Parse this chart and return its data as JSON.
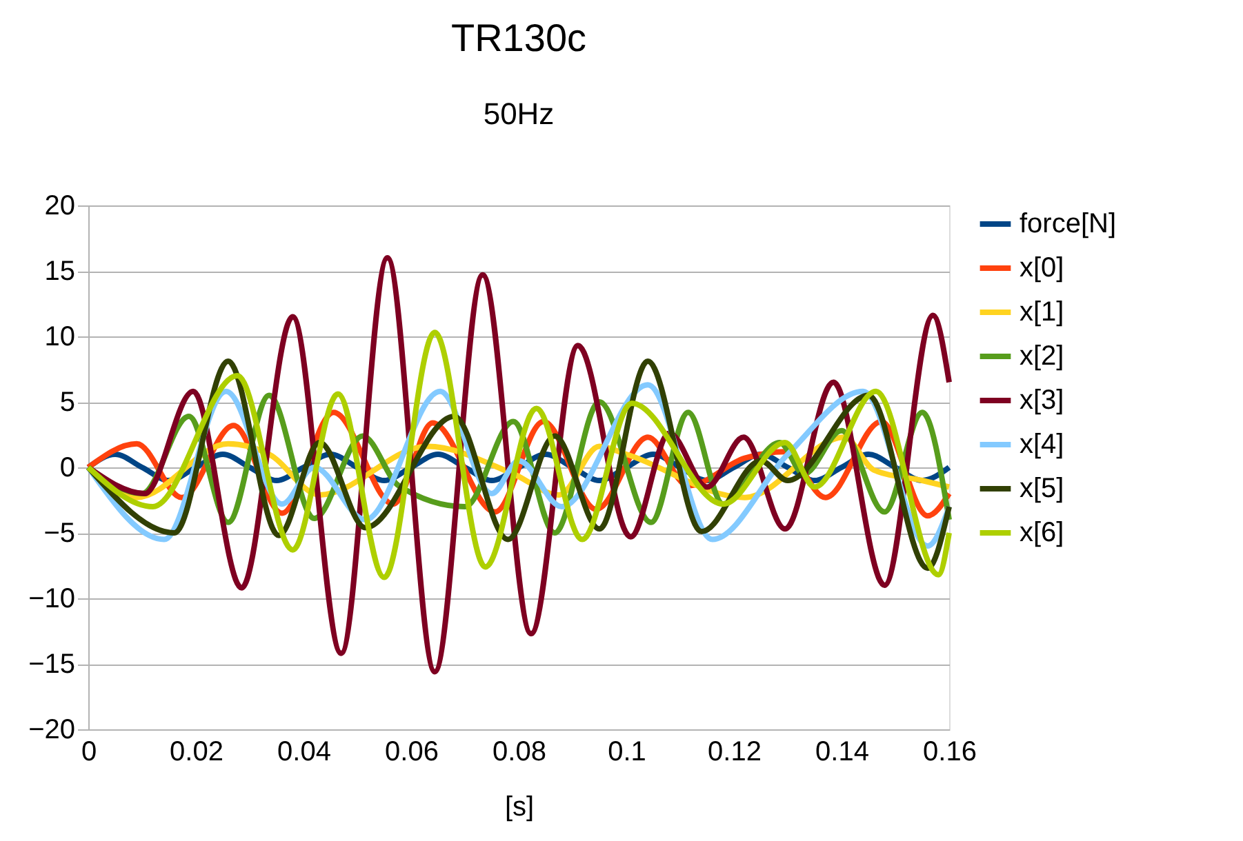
{
  "chart_data": {
    "type": "line",
    "title": "TR130c",
    "subtitle": "50Hz",
    "xlabel": "[s]",
    "xlim": [
      0,
      0.16
    ],
    "xticks": [
      0,
      0.02,
      0.04,
      0.06,
      0.08,
      0.1,
      0.12,
      0.14,
      0.16
    ],
    "ylim": [
      -20,
      20
    ],
    "yticks": [
      -20,
      -15,
      -10,
      -5,
      0,
      5,
      10,
      15,
      20
    ],
    "grid": "y",
    "legend": "right",
    "marker": "none",
    "line_style": "solid",
    "series": [
      {
        "name": "force[N]",
        "color": "#004586",
        "x": [
          0,
          0.005,
          0.01,
          0.015,
          0.02,
          0.025,
          0.03,
          0.035,
          0.04,
          0.045,
          0.05,
          0.055,
          0.06,
          0.065,
          0.07,
          0.075,
          0.08,
          0.085,
          0.09,
          0.095,
          0.1,
          0.105,
          0.11,
          0.115,
          0.12,
          0.125,
          0.13,
          0.135,
          0.14,
          0.145,
          0.15,
          0.155,
          0.16
        ],
        "values": [
          0,
          1,
          0,
          -1,
          0,
          1,
          0,
          -1,
          0,
          1,
          0,
          -1,
          0,
          1,
          0,
          -1,
          0,
          1,
          0,
          -1,
          0,
          1,
          0,
          -1,
          0,
          1,
          0,
          -1,
          0,
          1,
          0,
          -1,
          0
        ]
      },
      {
        "name": "x[0]",
        "color": "#ff420e",
        "x": [
          0,
          0.009,
          0.0174,
          0.027,
          0.036,
          0.0456,
          0.0567,
          0.064,
          0.0756,
          0.0846,
          0.0944,
          0.104,
          0.1115,
          0.122,
          0.1295,
          0.137,
          0.1474,
          0.156,
          0.16
        ],
        "values": [
          0,
          1.8,
          -2.3,
          3.2,
          -3.5,
          4.2,
          -2.8,
          3.4,
          -3.4,
          3.5,
          -3.2,
          2.3,
          -1.4,
          0.7,
          1.2,
          -2.3,
          3.5,
          -3.7,
          -2
        ]
      },
      {
        "name": "x[1]",
        "color": "#ffd320",
        "x": [
          0,
          0.009,
          0.026,
          0.0336,
          0.043,
          0.063,
          0.079,
          0.0875,
          0.095,
          0.1,
          0.122,
          0.1405,
          0.146,
          0.155,
          0.16
        ],
        "values": [
          0,
          -2.3,
          1.8,
          1,
          -2.1,
          1.6,
          -0.5,
          -2.1,
          1.6,
          1,
          -2.3,
          2.3,
          -0.2,
          -1,
          -1.5
        ]
      },
      {
        "name": "x[2]",
        "color": "#579d1c",
        "x": [
          0,
          0.01,
          0.0187,
          0.026,
          0.0336,
          0.042,
          0.051,
          0.0577,
          0.07,
          0.079,
          0.0867,
          0.095,
          0.1046,
          0.1115,
          0.118,
          0.1285,
          0.133,
          0.14,
          0.148,
          0.155,
          0.16
        ],
        "values": [
          0,
          -2,
          3.9,
          -4.2,
          5.5,
          -3.9,
          2.4,
          -1.4,
          -3,
          3.5,
          -5,
          5,
          -4.2,
          4.2,
          -2.8,
          1.9,
          -0.5,
          2.8,
          -3.4,
          4.2,
          -4
        ]
      },
      {
        "name": "x[3]",
        "color": "#7e0021",
        "x": [
          0,
          0.0105,
          0.0195,
          0.0285,
          0.038,
          0.047,
          0.0556,
          0.0644,
          0.0733,
          0.0823,
          0.091,
          0.1008,
          0.108,
          0.115,
          0.1218,
          0.1295,
          0.1385,
          0.148,
          0.157,
          0.16
        ],
        "values": [
          0,
          -2,
          5.8,
          -9.2,
          11.5,
          -14.2,
          16,
          -15.6,
          14.7,
          -12.7,
          9.3,
          -5.3,
          2.6,
          -1.5,
          2.3,
          -4.7,
          6.5,
          -9,
          11.6,
          6.5
        ]
      },
      {
        "name": "x[4]",
        "color": "#83caff",
        "x": [
          0,
          0.0141,
          0.0256,
          0.036,
          0.042,
          0.0515,
          0.0654,
          0.075,
          0.08,
          0.088,
          0.104,
          0.116,
          0.13,
          0.144,
          0.156,
          0.16
        ],
        "values": [
          0,
          -5.5,
          5.8,
          -2.8,
          0,
          -4,
          5.8,
          -2,
          0.5,
          -3,
          6.3,
          -5.5,
          1,
          5.8,
          -6,
          -3
        ]
      },
      {
        "name": "x[5]",
        "color": "#314004",
        "x": [
          0,
          0.016,
          0.026,
          0.0354,
          0.043,
          0.0515,
          0.068,
          0.078,
          0.0867,
          0.095,
          0.104,
          0.114,
          0.125,
          0.13,
          0.145,
          0.156,
          0.16
        ],
        "values": [
          0,
          -5,
          8.1,
          -5.2,
          1.9,
          -4.6,
          3.9,
          -5.5,
          2.4,
          -4.7,
          8.1,
          -4.9,
          0.5,
          -1,
          5.5,
          -7.7,
          -3
        ]
      },
      {
        "name": "x[6]",
        "color": "#aecf00",
        "x": [
          0,
          0.012,
          0.0277,
          0.038,
          0.0464,
          0.055,
          0.0644,
          0.0738,
          0.0833,
          0.0918,
          0.101,
          0.118,
          0.1295,
          0.135,
          0.1464,
          0.158,
          0.16
        ],
        "values": [
          0,
          -3,
          7,
          -6.3,
          5.6,
          -8.4,
          10.3,
          -7.6,
          4.5,
          -5.5,
          4.9,
          -2.8,
          1.9,
          -1.5,
          5.8,
          -8.2,
          -5
        ]
      }
    ]
  }
}
